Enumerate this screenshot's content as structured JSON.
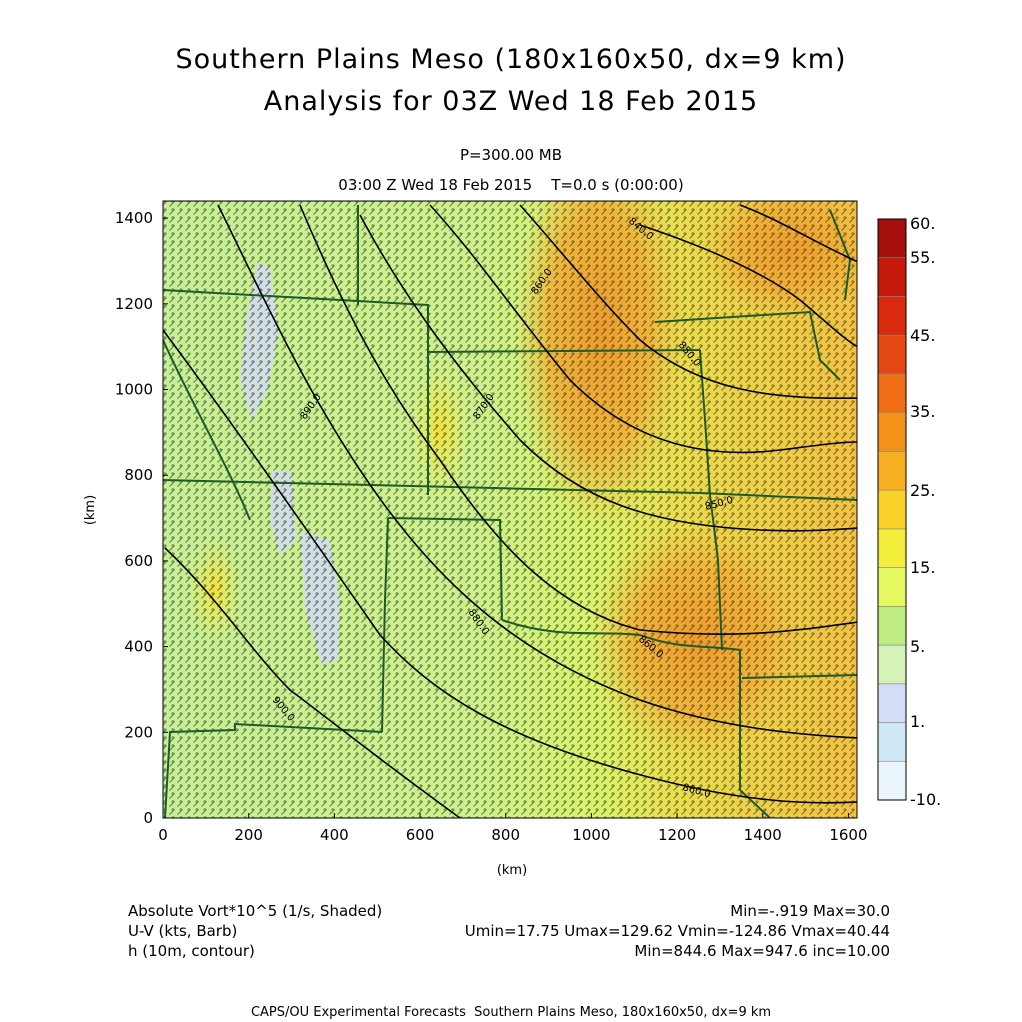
{
  "header": {
    "title_line1": "Southern Plains Meso (180x160x50, dx=9 km)",
    "title_line2": "Analysis for 03Z Wed 18 Feb 2015",
    "level": "P=300.00 MB",
    "time_line": "03:00 Z Wed 18 Feb 2015    T=0.0 s (0:00:00)"
  },
  "chart_data": {
    "type": "heatmap",
    "xlabel": "(km)",
    "ylabel": "(km)",
    "xlim": [
      0,
      1620
    ],
    "ylim": [
      0,
      1440
    ],
    "x_ticks": [
      "0",
      "200",
      "400",
      "600",
      "800",
      "1000",
      "1200",
      "1400",
      "1600"
    ],
    "y_ticks": [
      "0",
      "200",
      "400",
      "600",
      "800",
      "1000",
      "1200",
      "1400"
    ],
    "colorbar": {
      "labels": [
        "-10.",
        "1.",
        "5.",
        "15.",
        "25.",
        "35.",
        "45.",
        "55.",
        "60."
      ],
      "colors": [
        "#eaf6fb",
        "#cfe8f5",
        "#d4dcf6",
        "#d5f2b8",
        "#bdec80",
        "#e6f860",
        "#f3ee3a",
        "#fbd22c",
        "#f8b023",
        "#f59219",
        "#f06e16",
        "#e54812",
        "#d9290e",
        "#c31a0c",
        "#a30f0a"
      ]
    },
    "contours": {
      "variable": "h (10m, contour)",
      "labels": [
        "840.0",
        "850.0",
        "860.0",
        "870.0",
        "880.0",
        "890.0",
        "900.0"
      ]
    },
    "fields": [
      {
        "name": "Absolute Vort*10^5 (1/s, Shaded)",
        "stats": "Min=-.919 Max=30.0"
      },
      {
        "name": "U-V (kts, Barb)",
        "stats": "Umin=17.75 Umax=129.62 Vmin=-124.86 Vmax=40.44"
      },
      {
        "name": "h (10m, contour)",
        "stats": "Min=844.6 Max=947.6 inc=10.00"
      }
    ]
  },
  "footer": "CAPS/OU Experimental Forecasts  Southern Plains Meso, 180x160x50, dx=9 km"
}
